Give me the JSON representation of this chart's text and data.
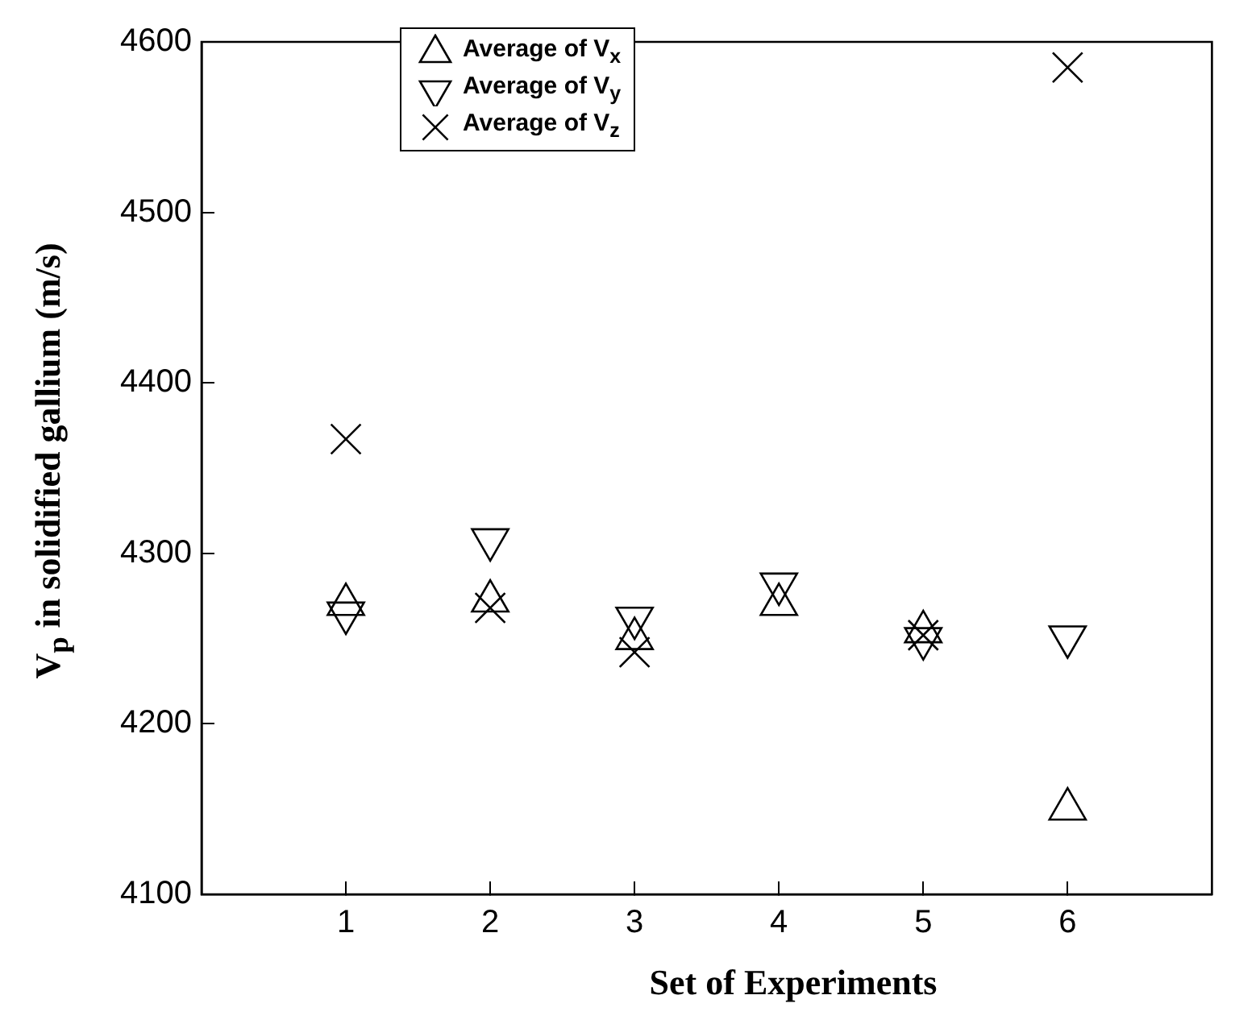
{
  "chart_data": {
    "type": "scatter",
    "xlabel": "Set of Experiments",
    "ylabel": "V$_{p}$ in solidified gallium (m/s)",
    "x": [
      1,
      2,
      3,
      4,
      5,
      6
    ],
    "series": [
      {
        "name": "Average of V$_{x}$",
        "color": "#000000",
        "marker": "triangle",
        "values": [
          4270,
          4272,
          4250,
          4270,
          4254,
          4150
        ]
      },
      {
        "name": "Average of V$_{y}$",
        "color": "#000000",
        "marker": "triangle_down",
        "values": [
          4265,
          4308,
          4262,
          4282,
          4250,
          4251
        ]
      },
      {
        "name": "Average of V$_{z}$",
        "color": "#000000",
        "marker": "cross",
        "values": [
          4367,
          4268,
          4242,
          null,
          4252,
          4585
        ]
      }
    ],
    "xlim": [
      0,
      7
    ],
    "xticks": [
      1,
      2,
      3,
      4,
      5,
      6
    ],
    "ylim": [
      4100,
      4600
    ],
    "yticks": [
      4100,
      4200,
      4300,
      4400,
      4500,
      4600
    ],
    "grid": false,
    "legend": "top left"
  }
}
